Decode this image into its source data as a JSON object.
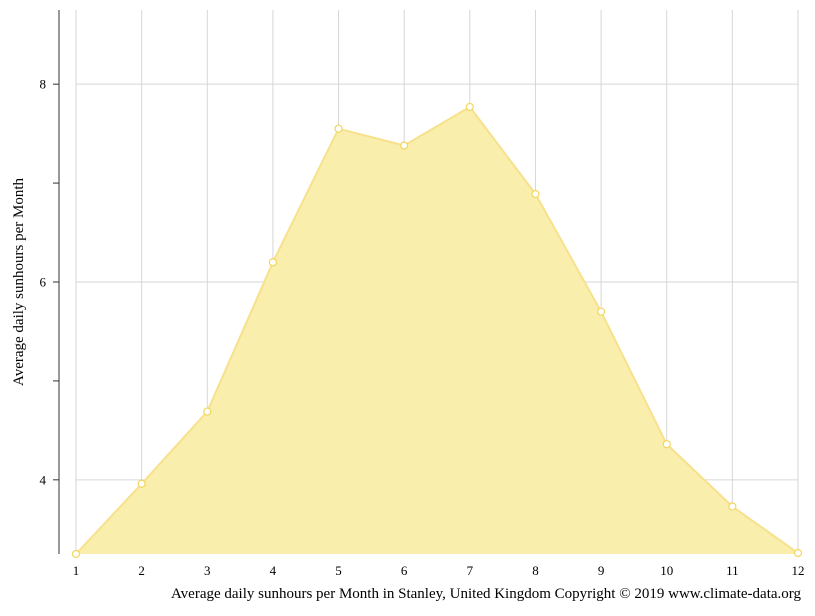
{
  "chart_data": {
    "type": "area",
    "title": "",
    "xlabel": "",
    "ylabel": "Average daily sunhours per Month",
    "caption": "Average daily sunhours per Month in Stanley, United Kingdom Copyright © 2019 www.climate-data.org",
    "x": [
      1,
      2,
      3,
      4,
      5,
      6,
      7,
      8,
      9,
      10,
      11,
      12
    ],
    "series": [
      {
        "values": [
          3.25,
          3.96,
          4.69,
          6.2,
          7.55,
          7.38,
          7.77,
          6.89,
          5.7,
          4.36,
          3.73,
          3.26
        ]
      }
    ],
    "xlim": [
      1,
      12
    ],
    "ylim": [
      3.25,
      8.75
    ],
    "y_ticks": [
      4,
      5,
      6,
      7,
      8
    ],
    "y_tick_labels": [
      "4",
      "",
      "6",
      "",
      "8"
    ],
    "grid": true,
    "colors": {
      "area_fill": "#f9eeac",
      "line": "#f7e18c",
      "marker_stroke": "#f2d65c",
      "grid": "#d6d6d6"
    }
  }
}
